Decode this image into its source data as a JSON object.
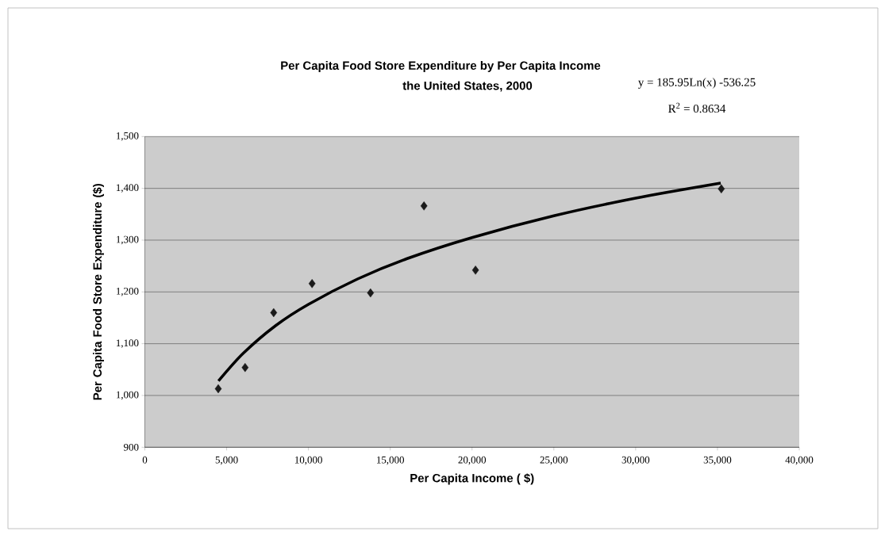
{
  "chart_data": {
    "type": "scatter",
    "title": "Per Capita Food Store Expenditure by Per Capita Income",
    "subtitle": "the United States, 2000",
    "xlabel": "Per Capita Income ( $)",
    "ylabel": "Per Capita Food Store Expenditure ($)",
    "annotations": [
      "y = 185.95Ln(x) -536.25",
      "R$^{2}$ = 0.8634"
    ],
    "series": [
      {
        "color": "#1a1a1a",
        "marker": "diamond",
        "x": [
          4487,
          6127,
          7873,
          10221,
          13793,
          17062,
          20211,
          35236
        ],
        "values": [
          1013,
          1054,
          1160,
          1216,
          1198,
          1366,
          1242,
          1399
        ]
      },
      {
        "type": "line",
        "color": "#000000",
        "marker": "none",
        "x": [
          4500,
          6000,
          8000,
          10000,
          13000,
          16000,
          20000,
          25000,
          30000,
          35200
        ],
        "values": [
          1028,
          1081,
          1135,
          1176,
          1225,
          1264,
          1305,
          1347,
          1381,
          1410
        ]
      }
    ],
    "xlim": [
      0,
      40000
    ],
    "xticks": [
      0,
      {
        "value": 5000,
        "label": "5,000"
      },
      {
        "value": 10000,
        "label": "10,000"
      },
      {
        "value": 15000,
        "label": "15,000"
      },
      {
        "value": 20000,
        "label": "20,000"
      },
      {
        "value": 25000,
        "label": "25,000"
      },
      {
        "value": 30000,
        "label": "30,000"
      },
      {
        "value": 35000,
        "label": "35,000"
      },
      {
        "value": 40000,
        "label": "40,000"
      }
    ],
    "ylim": [
      900,
      1500
    ],
    "yticks": [
      900,
      {
        "value": 1000,
        "label": "1,000"
      },
      {
        "value": 1100,
        "label": "1,100"
      },
      {
        "value": 1200,
        "label": "1,200"
      },
      {
        "value": 1300,
        "label": "1,300"
      },
      {
        "value": 1400,
        "label": "1,400"
      },
      {
        "value": 1500,
        "label": "1,500"
      }
    ],
    "grid": "y"
  }
}
